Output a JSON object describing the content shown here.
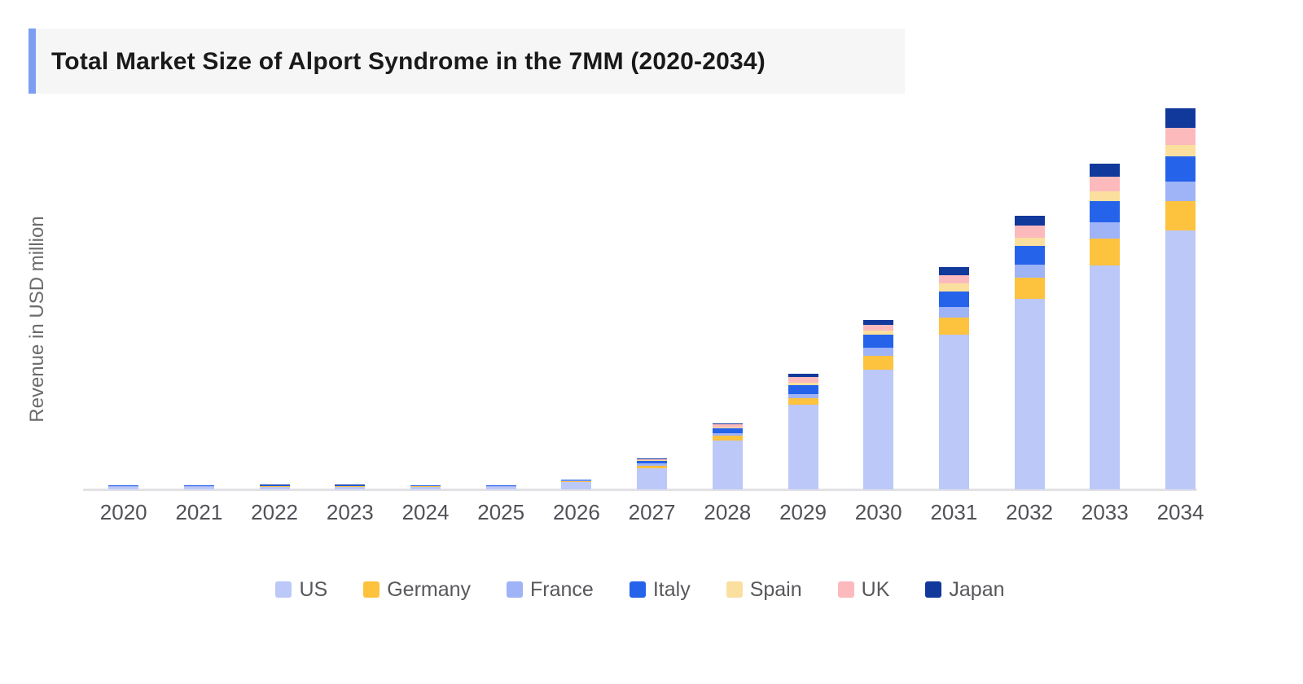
{
  "title": "Total Market Size of Alport Syndrome in the 7MM (2020-2034)",
  "accent_color": "#7c9ff2",
  "title_background": "#f6f6f7",
  "axis_line_color": "#e2e2e6",
  "chart_data": {
    "type": "bar",
    "stacked": true,
    "title": "Total Market Size of Alport Syndrome in the 7MM (2020-2034)",
    "xlabel": "",
    "ylabel": "Revenue in USD million",
    "ylim": [
      0,
      480
    ],
    "grid": false,
    "legend_position": "bottom",
    "categories": [
      "2020",
      "2021",
      "2022",
      "2023",
      "2024",
      "2025",
      "2026",
      "2027",
      "2028",
      "2029",
      "2030",
      "2031",
      "2032",
      "2033",
      "2034"
    ],
    "series": [
      {
        "name": "US",
        "slug": "us",
        "color": "#bcc8f8",
        "values": [
          3.2,
          3.3,
          3.4,
          3.4,
          3.3,
          3.1,
          9.5,
          26,
          61,
          105,
          149,
          192,
          237,
          279,
          322
        ]
      },
      {
        "name": "Germany",
        "slug": "germany",
        "color": "#fdc23e",
        "values": [
          0.2,
          0.2,
          0.2,
          0.2,
          0.3,
          0.4,
          0.7,
          3.5,
          6,
          8,
          17,
          22,
          26,
          33,
          37
        ]
      },
      {
        "name": "France",
        "slug": "france",
        "color": "#9fb3f7",
        "values": [
          0.7,
          0.7,
          0.7,
          0.7,
          0.6,
          0.6,
          1.0,
          2.5,
          2.5,
          6,
          10,
          13,
          17,
          20,
          24
        ]
      },
      {
        "name": "Italy",
        "slug": "italy",
        "color": "#2563eb",
        "values": [
          0.9,
          0.9,
          0.9,
          0.9,
          0.8,
          0.6,
          0.5,
          3.0,
          6.5,
          10.5,
          16,
          19,
          23,
          27,
          31
        ]
      },
      {
        "name": "Spain",
        "slug": "spain",
        "color": "#fbdf9e",
        "values": [
          0.1,
          0.1,
          0.1,
          0.1,
          0.1,
          0.1,
          0.1,
          1.0,
          1.5,
          3.7,
          5,
          10,
          10,
          12,
          14
        ]
      },
      {
        "name": "UK",
        "slug": "uk",
        "color": "#fcbabd",
        "values": [
          0.2,
          0.2,
          0.2,
          0.2,
          0.2,
          0.2,
          0.2,
          1.5,
          3.5,
          6.6,
          8,
          10,
          15,
          18,
          22
        ]
      },
      {
        "name": "Japan",
        "slug": "japan",
        "color": "#11399b",
        "values": [
          0.2,
          0.2,
          0.2,
          0.2,
          0.2,
          0.1,
          0.1,
          0.8,
          1.5,
          4.0,
          6,
          10,
          12,
          16,
          24
        ]
      }
    ]
  }
}
